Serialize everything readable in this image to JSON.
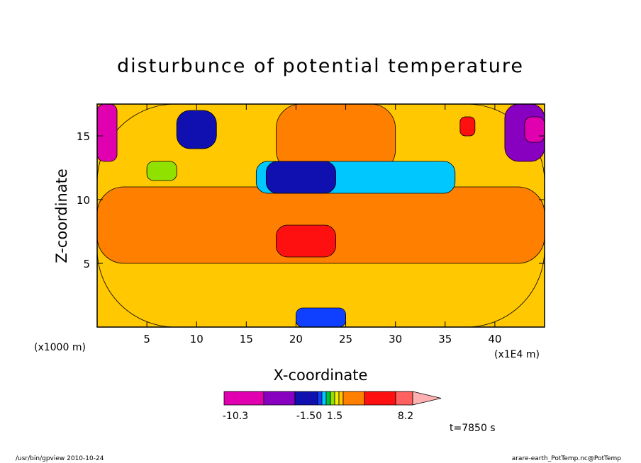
{
  "chart_data": {
    "type": "heatmap",
    "title": "disturbunce of potential temperature",
    "xlabel": "X-coordinate",
    "ylabel": "Z-coordinate",
    "x_unit_left": "(x1000 m)",
    "x_unit_right": "(x1E4 m)",
    "xlim": [
      0,
      45
    ],
    "ylim": [
      0,
      17.5
    ],
    "xticks": [
      5,
      10,
      15,
      20,
      25,
      30,
      35,
      40
    ],
    "yticks": [
      5,
      10,
      15
    ],
    "time_label": "t=7850 s",
    "colorbar": {
      "colors": [
        "#e000b0",
        "#8800c0",
        "#1010b0",
        "#1040ff",
        "#00c8ff",
        "#00c040",
        "#90e000",
        "#f0f000",
        "#ffc800",
        "#ff8000",
        "#ff1010",
        "#ff6060",
        "#ffb0b0"
      ],
      "labels": [
        "-10.3",
        "-1.50",
        "1.5",
        "8.2"
      ]
    },
    "regions": [
      {
        "level": 8,
        "x0": 0,
        "x1": 45,
        "y0": 0,
        "y1": 17.5
      },
      {
        "level": 9,
        "x0": 0,
        "x1": 45,
        "y0": 5,
        "y1": 11
      },
      {
        "level": 9,
        "x0": 18,
        "x1": 30,
        "y0": 12,
        "y1": 17.5
      },
      {
        "level": 10,
        "x0": 18,
        "x1": 24,
        "y0": 5.5,
        "y1": 8
      },
      {
        "level": 4,
        "x0": 16,
        "x1": 36,
        "y0": 10.5,
        "y1": 13
      },
      {
        "level": 2,
        "x0": 17,
        "x1": 24,
        "y0": 10.5,
        "y1": 13
      },
      {
        "level": 0,
        "x0": 0,
        "x1": 2,
        "y0": 13,
        "y1": 17.5
      },
      {
        "level": 1,
        "x0": 41,
        "x1": 45,
        "y0": 13,
        "y1": 17.5
      },
      {
        "level": 0,
        "x0": 43,
        "x1": 45,
        "y0": 14.5,
        "y1": 16.5
      },
      {
        "level": 2,
        "x0": 8,
        "x1": 12,
        "y0": 14,
        "y1": 17
      },
      {
        "level": 10,
        "x0": 36.5,
        "x1": 38,
        "y0": 15,
        "y1": 16.5
      },
      {
        "level": 6,
        "x0": 5,
        "x1": 8,
        "y0": 11.5,
        "y1": 13
      },
      {
        "level": 3,
        "x0": 20,
        "x1": 25,
        "y0": 0,
        "y1": 1.5
      }
    ]
  },
  "footer": {
    "left": "/usr/bin/gpview 2010-10-24",
    "right": "arare-earth_PotTemp.nc@PotTemp"
  }
}
